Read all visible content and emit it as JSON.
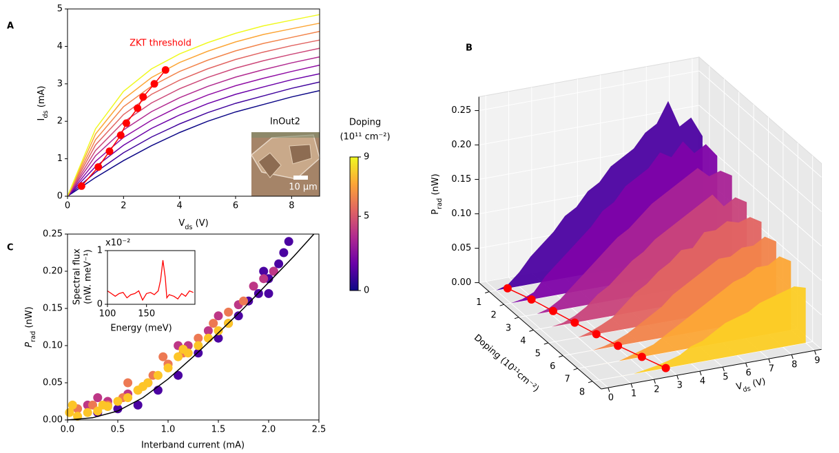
{
  "chart_data": [
    {
      "type": "line",
      "panel": "A",
      "xlabel": [
        "V",
        "ds",
        " (V)"
      ],
      "ylabel": [
        "I",
        "ds",
        " (mA)"
      ],
      "xlim": [
        0,
        9
      ],
      "ylim": [
        0,
        5
      ],
      "xticks": [
        0,
        2,
        4,
        6,
        8
      ],
      "yticks": [
        0,
        1,
        2,
        3,
        4,
        5
      ],
      "x": [
        0,
        1,
        2,
        3,
        4,
        5,
        6,
        7,
        8,
        9
      ],
      "series": [
        {
          "color": "#0d0887",
          "values": [
            0,
            0.5,
            0.95,
            1.35,
            1.7,
            2.0,
            2.25,
            2.45,
            2.65,
            2.82
          ]
        },
        {
          "color": "#41049d",
          "values": [
            0,
            0.64,
            1.16,
            1.58,
            1.93,
            2.23,
            2.48,
            2.68,
            2.88,
            3.05
          ]
        },
        {
          "color": "#6a00a8",
          "values": [
            0,
            0.79,
            1.36,
            1.81,
            2.17,
            2.47,
            2.72,
            2.92,
            3.11,
            3.27
          ]
        },
        {
          "color": "#8f0da4",
          "values": [
            0,
            0.93,
            1.57,
            2.03,
            2.4,
            2.7,
            2.95,
            3.15,
            3.33,
            3.5
          ]
        },
        {
          "color": "#b12a90",
          "values": [
            0,
            1.08,
            1.77,
            2.26,
            2.63,
            2.93,
            3.18,
            3.38,
            3.56,
            3.72
          ]
        },
        {
          "color": "#cc4778",
          "values": [
            0,
            1.22,
            1.98,
            2.49,
            2.87,
            3.17,
            3.42,
            3.62,
            3.79,
            3.95
          ]
        },
        {
          "color": "#e16462",
          "values": [
            0,
            1.37,
            2.18,
            2.72,
            3.1,
            3.4,
            3.65,
            3.85,
            4.02,
            4.17
          ]
        },
        {
          "color": "#f2844b",
          "values": [
            0,
            1.51,
            2.39,
            2.94,
            3.33,
            3.63,
            3.88,
            4.08,
            4.24,
            4.4
          ]
        },
        {
          "color": "#fca636",
          "values": [
            0,
            1.66,
            2.59,
            3.17,
            3.57,
            3.87,
            4.12,
            4.32,
            4.47,
            4.62
          ]
        },
        {
          "color": "#f0f921",
          "values": [
            0,
            1.8,
            2.8,
            3.4,
            3.8,
            4.1,
            4.35,
            4.55,
            4.7,
            4.85
          ]
        }
      ],
      "threshold": {
        "label": "ZKT threshold",
        "color": "#ff0000",
        "x": [
          0.5,
          1.1,
          1.5,
          1.9,
          2.1,
          2.5,
          2.7,
          3.1,
          3.5
        ],
        "values": [
          0.27,
          0.78,
          1.2,
          1.63,
          1.95,
          2.35,
          2.65,
          3.0,
          3.37
        ]
      },
      "inset": {
        "title": "InOut2",
        "scale_bar": "10 µm"
      },
      "colorbar": {
        "label": [
          "Doping",
          "(10¹¹ cm⁻²)"
        ],
        "lim": [
          0,
          9
        ],
        "ticks": [
          0,
          5,
          9
        ],
        "colors": [
          "#0d0887",
          "#6a00a8",
          "#b12a90",
          "#e16462",
          "#fca636",
          "#f0f921"
        ]
      }
    },
    {
      "type": "waterfall3d",
      "panel": "B",
      "xlabel": [
        "V",
        "ds",
        " (V)"
      ],
      "ylabel": "Doping (10¹¹cm⁻²)",
      "zlabel": [
        "P",
        "rad",
        " (nW)"
      ],
      "xlim": [
        -0.3,
        9.3
      ],
      "ylim": [
        0.3,
        8.6
      ],
      "zlim": [
        0,
        0.27
      ],
      "xticks": [
        0,
        1,
        2,
        3,
        4,
        5,
        6,
        7,
        8,
        9
      ],
      "yticks": [
        1,
        2,
        3,
        4,
        5,
        6,
        7,
        8
      ],
      "zticks": [
        {
          "value": 0,
          "label": "0.00"
        },
        0.05,
        {
          "value": 0.1,
          "label": "0.10"
        },
        0.15,
        {
          "value": 0.2,
          "label": "0.20"
        },
        0.25
      ],
      "x": [
        0,
        0.5,
        1,
        1.5,
        2,
        2.5,
        3,
        3.5,
        4,
        4.5,
        5,
        5.5,
        6,
        6.5,
        7,
        7.5,
        8,
        8.5,
        9
      ],
      "series": [
        {
          "doping": 1,
          "color": "#4c02a1",
          "values": [
            0,
            0.005,
            0.02,
            0.04,
            0.055,
            0.07,
            0.09,
            0.1,
            0.12,
            0.13,
            0.15,
            0.16,
            0.17,
            0.19,
            0.2,
            0.23,
            0.19,
            0.2,
            0.17
          ]
        },
        {
          "doping": 2,
          "color": "#7e03a8",
          "values": [
            0,
            0.003,
            0.01,
            0.03,
            0.045,
            0.06,
            0.075,
            0.09,
            0.11,
            0.12,
            0.14,
            0.15,
            0.16,
            0.18,
            0.17,
            0.19,
            0.17,
            0.18,
            0.16
          ]
        },
        {
          "doping": 3,
          "color": "#a82296",
          "values": [
            0,
            0,
            0.005,
            0.015,
            0.03,
            0.045,
            0.06,
            0.075,
            0.09,
            0.1,
            0.115,
            0.13,
            0.14,
            0.15,
            0.16,
            0.17,
            0.155,
            0.16,
            0.15
          ]
        },
        {
          "doping": 4,
          "color": "#c8437b",
          "values": [
            0,
            0,
            0.003,
            0.01,
            0.02,
            0.035,
            0.045,
            0.06,
            0.075,
            0.085,
            0.1,
            0.11,
            0.12,
            0.13,
            0.14,
            0.15,
            0.13,
            0.14,
            0.13
          ]
        },
        {
          "doping": 5,
          "color": "#e16462",
          "values": [
            0,
            0,
            0,
            0.005,
            0.012,
            0.02,
            0.035,
            0.05,
            0.06,
            0.075,
            0.085,
            0.1,
            0.1,
            0.12,
            0.12,
            0.13,
            0.125,
            0.13,
            0.12
          ]
        },
        {
          "doping": 6,
          "color": "#f2844b",
          "values": [
            0,
            0,
            0,
            0.003,
            0.008,
            0.015,
            0.025,
            0.035,
            0.045,
            0.06,
            0.07,
            0.08,
            0.09,
            0.1,
            0.1,
            0.11,
            0.11,
            0.12,
            0.11
          ]
        },
        {
          "doping": 7,
          "color": "#fca636",
          "values": [
            0,
            0,
            0,
            0,
            0.005,
            0.01,
            0.015,
            0.025,
            0.035,
            0.045,
            0.055,
            0.065,
            0.075,
            0.085,
            0.09,
            0.1,
            0.1,
            0.11,
            0.1
          ]
        },
        {
          "doping": 8,
          "color": "#fcce25",
          "values": [
            0,
            0,
            0,
            0,
            0.003,
            0.006,
            0.01,
            0.015,
            0.025,
            0.03,
            0.04,
            0.05,
            0.055,
            0.06,
            0.07,
            0.075,
            0.08,
            0.085,
            0.08
          ]
        }
      ],
      "threshold": {
        "color": "#ff0000",
        "doping": [
          1,
          2,
          3,
          4,
          5,
          6,
          7,
          8
        ],
        "x": [
          0.5,
          0.9,
          1.2,
          1.5,
          1.8,
          2.1,
          2.5,
          2.9
        ]
      }
    },
    {
      "type": "scatter",
      "panel": "C",
      "xlabel": "Interband current (mA)",
      "ylabel": [
        "P",
        "rad",
        " (nW)"
      ],
      "xlim": [
        0,
        2.5
      ],
      "ylim": [
        0,
        0.25
      ],
      "xticks": [
        {
          "value": 0,
          "label": "0.0"
        },
        0.5,
        {
          "value": 1,
          "label": "1.0"
        },
        1.5,
        {
          "value": 2,
          "label": "2.0"
        },
        2.5
      ],
      "yticks": [
        {
          "value": 0,
          "label": "0.00"
        },
        0.05,
        {
          "value": 0.1,
          "label": "0.10"
        },
        0.15,
        {
          "value": 0.2,
          "label": "0.20"
        },
        0.25
      ],
      "series": [
        {
          "color": "#4b03a1",
          "x": [
            0.3,
            0.5,
            0.7,
            0.9,
            1.1,
            1.3,
            1.5,
            1.6,
            1.7,
            1.8,
            1.9,
            2.0,
            2.05,
            2.1,
            2.2,
            2.15,
            2.0,
            1.95
          ],
          "values": [
            0.01,
            0.015,
            0.02,
            0.04,
            0.06,
            0.09,
            0.11,
            0.13,
            0.14,
            0.16,
            0.17,
            0.19,
            0.2,
            0.21,
            0.24,
            0.225,
            0.17,
            0.2
          ]
        },
        {
          "color": "#bd3786",
          "x": [
            0.2,
            0.4,
            0.6,
            0.8,
            1.0,
            1.2,
            1.4,
            1.5,
            1.7,
            1.85,
            1.95,
            2.05,
            0.3,
            1.1
          ],
          "values": [
            0.02,
            0.025,
            0.035,
            0.05,
            0.075,
            0.1,
            0.12,
            0.14,
            0.155,
            0.18,
            0.19,
            0.2,
            0.03,
            0.1
          ]
        },
        {
          "color": "#ed7953",
          "x": [
            0.1,
            0.25,
            0.4,
            0.55,
            0.7,
            0.85,
            1.0,
            1.15,
            1.3,
            1.45,
            1.6,
            1.75,
            0.6,
            0.95
          ],
          "values": [
            0.015,
            0.02,
            0.02,
            0.03,
            0.04,
            0.06,
            0.075,
            0.09,
            0.11,
            0.13,
            0.145,
            0.16,
            0.05,
            0.085
          ]
        },
        {
          "color": "#fdc527",
          "x": [
            0.02,
            0.1,
            0.2,
            0.3,
            0.4,
            0.5,
            0.6,
            0.7,
            0.8,
            0.9,
            1.0,
            1.1,
            1.2,
            1.3,
            1.4,
            1.5,
            1.6,
            0.05,
            0.35,
            0.75,
            1.15
          ],
          "values": [
            0.01,
            0.005,
            0.01,
            0.012,
            0.018,
            0.025,
            0.03,
            0.04,
            0.05,
            0.06,
            0.07,
            0.085,
            0.09,
            0.1,
            0.11,
            0.12,
            0.13,
            0.02,
            0.02,
            0.045,
            0.095
          ]
        }
      ],
      "fit": {
        "color": "#000000",
        "x": [
          0,
          0.25,
          0.5,
          0.75,
          1,
          1.25,
          1.5,
          1.75,
          2,
          2.25,
          2.45
        ],
        "values": [
          0,
          0.003,
          0.012,
          0.03,
          0.055,
          0.085,
          0.117,
          0.15,
          0.185,
          0.22,
          0.25
        ]
      },
      "inset": {
        "type": "line",
        "xlabel": "Energy (meV)",
        "ylabel": [
          "Spectral flux",
          "(nW. meV⁻¹)"
        ],
        "multiplier": "x10⁻²",
        "xlim": [
          100,
          212
        ],
        "ylim": [
          0,
          1
        ],
        "xticks": [
          100,
          150
        ],
        "yticks": [
          0,
          1
        ],
        "color": "#ff0000",
        "x": [
          100,
          105,
          110,
          115,
          120,
          125,
          130,
          135,
          140,
          145,
          150,
          155,
          160,
          165,
          168,
          171,
          174,
          176,
          179,
          185,
          190,
          195,
          200,
          205,
          210
        ],
        "values": [
          0.25,
          0.2,
          0.15,
          0.2,
          0.22,
          0.12,
          0.18,
          0.2,
          0.25,
          0.08,
          0.2,
          0.22,
          0.18,
          0.25,
          0.45,
          0.82,
          0.5,
          0.12,
          0.18,
          0.15,
          0.1,
          0.2,
          0.15,
          0.25,
          0.22
        ]
      }
    }
  ]
}
